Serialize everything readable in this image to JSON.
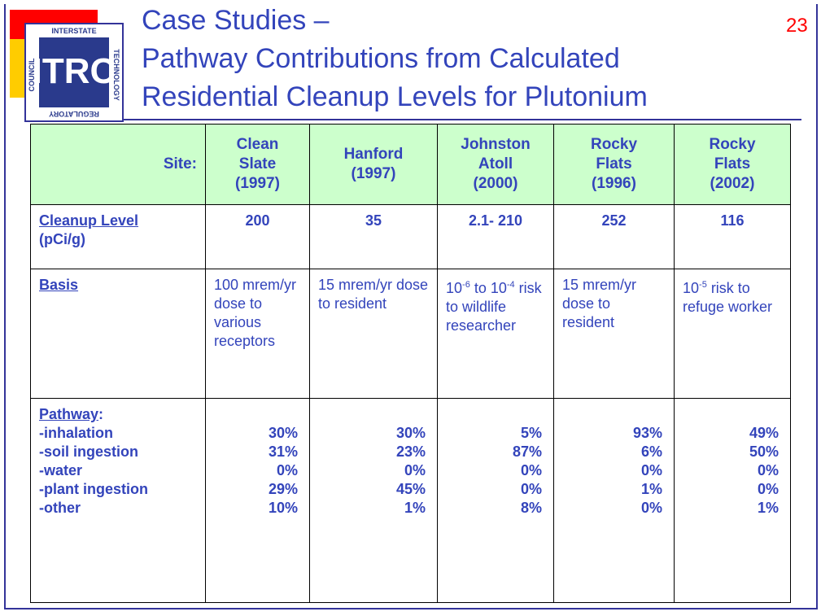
{
  "slide_number": "23",
  "logo": {
    "top": "INTERSTATE",
    "right": "TECHNOLOGY",
    "bottom": "REGULATORY",
    "left": "COUNCIL",
    "mark": "ITRC"
  },
  "title": [
    "Case Studies –",
    "Pathway Contributions from Calculated",
    "Residential Cleanup Levels for Plutonium"
  ],
  "table": {
    "header": {
      "label": "Site:",
      "sites": [
        [
          "Clean",
          "Slate",
          "(1997)"
        ],
        [
          "Hanford",
          "(1997)"
        ],
        [
          "Johnston",
          "Atoll",
          "(2000)"
        ],
        [
          "Rocky",
          "Flats",
          "(1996)"
        ],
        [
          "Rocky",
          "Flats",
          "(2002)"
        ]
      ]
    },
    "cleanup": {
      "label": "Cleanup Level",
      "unit": "(pCi/g)",
      "values": [
        "200",
        "35",
        "2.1- 210",
        "252",
        "116"
      ]
    },
    "basis": {
      "label": "Basis",
      "values": [
        [
          {
            "text": "100 mrem/yr dose to various receptors"
          }
        ],
        [
          {
            "text": "15 mrem/yr dose to resident"
          }
        ],
        [
          {
            "text": "10"
          },
          {
            "sup": "-6"
          },
          {
            "text": " to 10"
          },
          {
            "sup": "-4"
          },
          {
            "text": " risk to wildlife researcher"
          }
        ],
        [
          {
            "text": "15 mrem/yr dose to resident"
          }
        ],
        [
          {
            "text": "10"
          },
          {
            "sup": "-5"
          },
          {
            "text": " risk to refuge worker"
          }
        ]
      ]
    },
    "pathway": {
      "label": "Pathway",
      "colon": ":",
      "rows": [
        {
          "name": "-inhalation",
          "values": [
            "30%",
            "30%",
            "5%",
            "93%",
            "49%"
          ]
        },
        {
          "name": "-soil ingestion",
          "values": [
            "31%",
            "23%",
            "87%",
            "6%",
            "50%"
          ]
        },
        {
          "name": "-water",
          "values": [
            "0%",
            "0%",
            "0%",
            "0%",
            "0%"
          ]
        },
        {
          "name": "-plant ingestion",
          "values": [
            "29%",
            "45%",
            "0%",
            "1%",
            "0%"
          ]
        },
        {
          "name": "-other",
          "values": [
            "10%",
            "1%",
            "8%",
            "0%",
            "1%"
          ]
        }
      ]
    }
  }
}
